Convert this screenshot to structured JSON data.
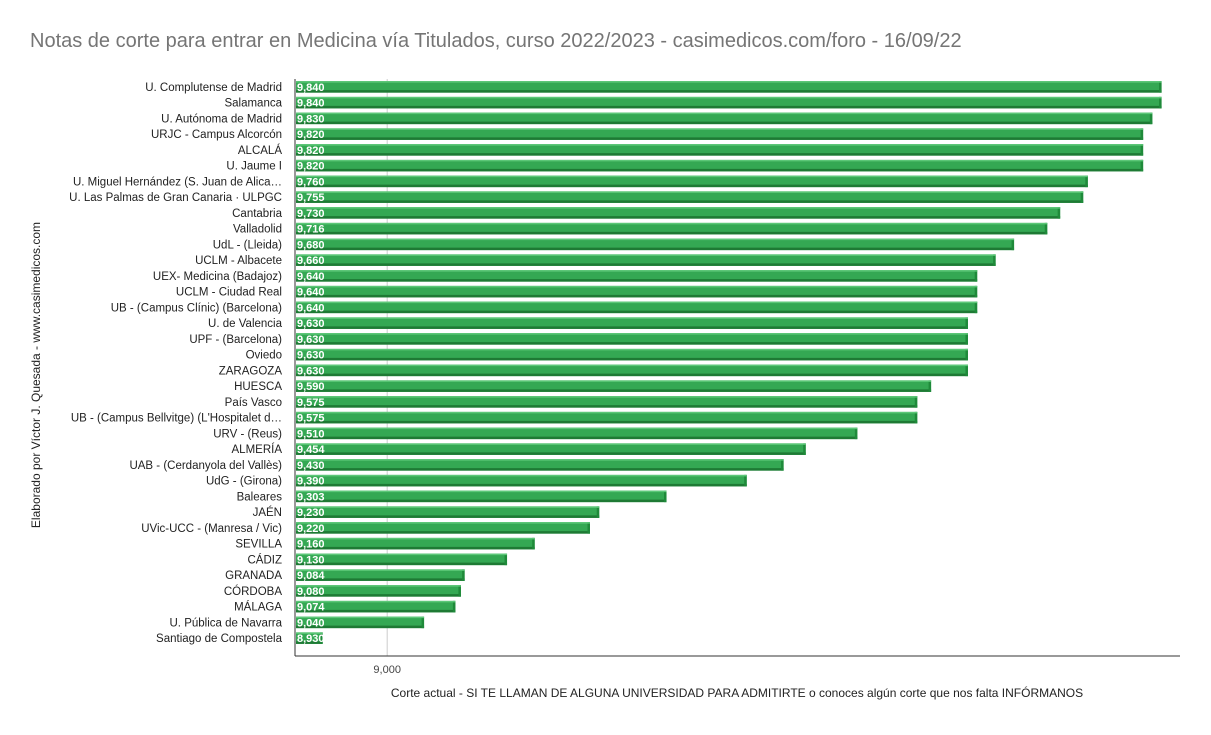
{
  "chart_data": {
    "type": "bar",
    "orientation": "horizontal",
    "title": "Notas de corte para entrar en Medicina vía Titulados, curso 2022/2023 - casimedicos.com/foro - 16/09/22",
    "xlabel": "Corte actual - SI TE LLAMAN DE ALGUNA UNIVERSIDAD PARA ADMITIRTE o conoces algún corte que nos falta INFÓRMANOS",
    "ylabel": "Elaborado por Víctor J. Quesada - www.casimedicos.com",
    "xlim": [
      8.9,
      9.86
    ],
    "ticks": [
      {
        "value": 9.0,
        "label": "9,000"
      }
    ],
    "bar_color": "#34a853",
    "categories": [
      "U. Complutense de Madrid",
      "Salamanca",
      "U. Autónoma de Madrid",
      "URJC - Campus Alcorcón",
      "ALCALÁ",
      "U. Jaume I",
      "U. Miguel Hernández (S. Juan de Alica…",
      "U. Las Palmas de Gran Canaria · ULPGC",
      "Cantabria",
      "Valladolid",
      "UdL - (Lleida)",
      "UCLM - Albacete",
      "UEX- Medicina (Badajoz)",
      "UCLM - Ciudad Real",
      "UB - (Campus Clínic) (Barcelona)",
      "U. de Valencia",
      "UPF - (Barcelona)",
      "Oviedo",
      "ZARAGOZA",
      "HUESCA",
      "País Vasco",
      "UB - (Campus Bellvitge) (L'Hospitalet d…",
      "URV - (Reus)",
      "ALMERÍA",
      "UAB - (Cerdanyola del Vallès)",
      "UdG - (Girona)",
      "Baleares",
      "JAÉN",
      "UVic-UCC - (Manresa / Vic)",
      "SEVILLA",
      "CÁDIZ",
      "GRANADA",
      "CÓRDOBA",
      "MÁLAGA",
      "U. Pública de Navarra",
      "Santiago de Compostela"
    ],
    "values": [
      9.84,
      9.84,
      9.83,
      9.82,
      9.82,
      9.82,
      9.76,
      9.755,
      9.73,
      9.716,
      9.68,
      9.66,
      9.64,
      9.64,
      9.64,
      9.63,
      9.63,
      9.63,
      9.63,
      9.59,
      9.575,
      9.575,
      9.51,
      9.454,
      9.43,
      9.39,
      9.303,
      9.23,
      9.22,
      9.16,
      9.13,
      9.084,
      9.08,
      9.074,
      9.04,
      8.93
    ],
    "data_labels": [
      "9,840",
      "9,840",
      "9,830",
      "9,820",
      "9,820",
      "9,820",
      "9,760",
      "9,755",
      "9,730",
      "9,716",
      "9,680",
      "9,660",
      "9,640",
      "9,640",
      "9,640",
      "9,630",
      "9,630",
      "9,630",
      "9,630",
      "9,590",
      "9,575",
      "9,575",
      "9,510",
      "9,454",
      "9,430",
      "9,390",
      "9,303",
      "9,230",
      "9,220",
      "9,160",
      "9,130",
      "9,084",
      "9,080",
      "9,074",
      "9,040",
      "8,930"
    ],
    "grid": true,
    "legend": "none"
  }
}
